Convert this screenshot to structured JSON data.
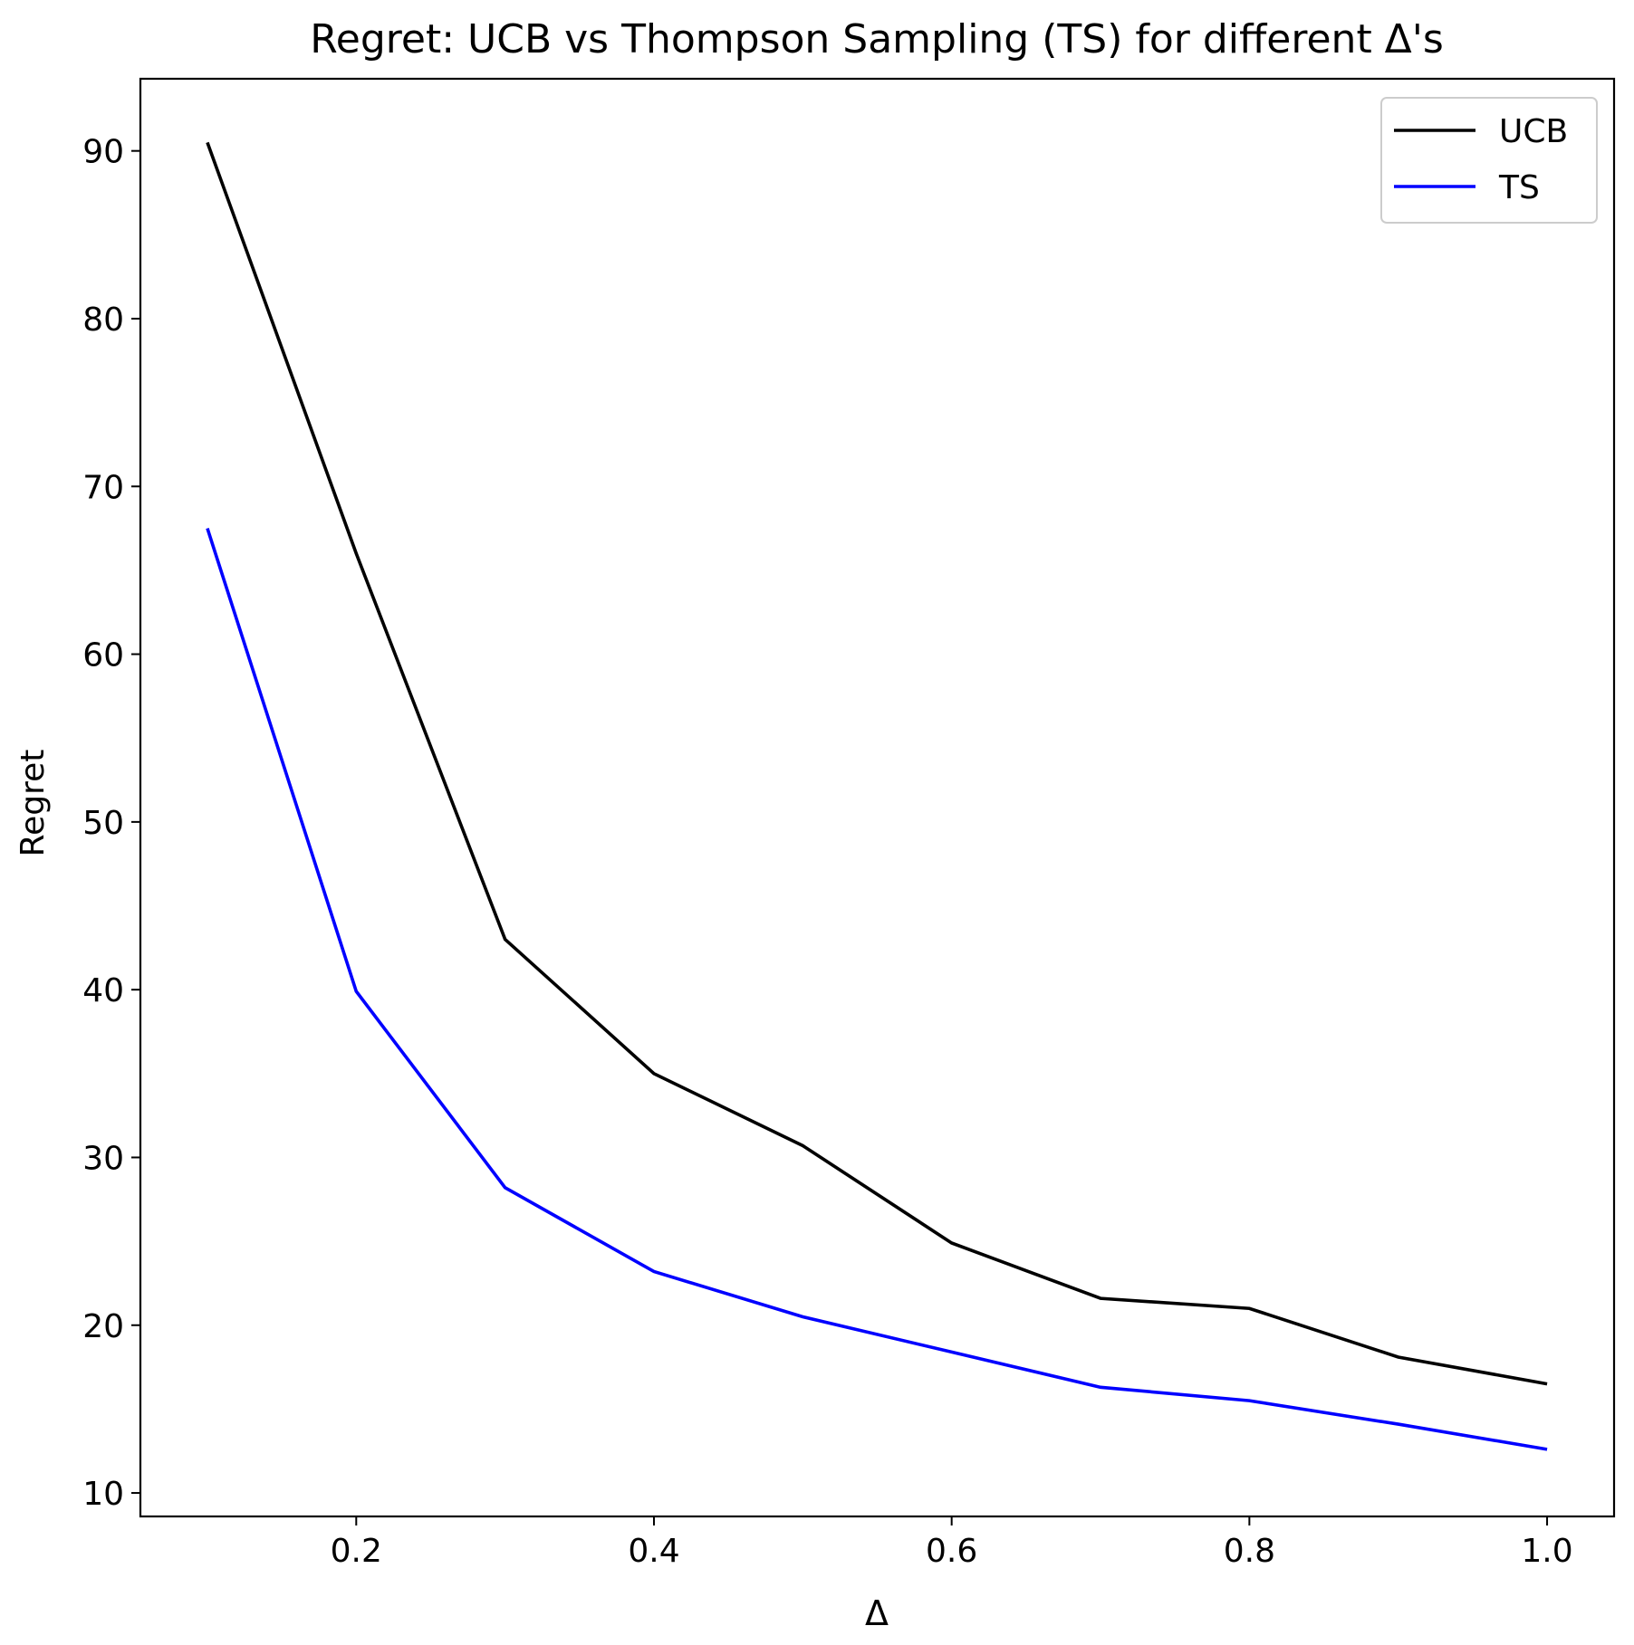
{
  "chart_data": {
    "type": "line",
    "title": "Regret: UCB vs Thompson Sampling (TS) for different Δ's",
    "xlabel": "Δ",
    "ylabel": "Regret",
    "x": [
      0.1,
      0.2,
      0.3,
      0.4,
      0.5,
      0.6,
      0.7,
      0.8,
      0.9,
      1.0
    ],
    "xlim": [
      0.055,
      1.045
    ],
    "ylim": [
      8.6,
      94.3
    ],
    "xticks": [
      0.2,
      0.4,
      0.6,
      0.8,
      1.0
    ],
    "xtick_labels": [
      "0.2",
      "0.4",
      "0.6",
      "0.8",
      "1.0"
    ],
    "yticks": [
      10,
      20,
      30,
      40,
      50,
      60,
      70,
      80,
      90
    ],
    "ytick_labels": [
      "10",
      "20",
      "30",
      "40",
      "50",
      "60",
      "70",
      "80",
      "90"
    ],
    "grid": false,
    "legend_position": "top-right",
    "series": [
      {
        "name": "UCB",
        "color": "#000000",
        "values": [
          90.5,
          66.0,
          43.0,
          35.0,
          30.7,
          24.9,
          21.6,
          21.0,
          18.1,
          16.5
        ]
      },
      {
        "name": "TS",
        "color": "#0000ff",
        "values": [
          67.5,
          39.9,
          28.2,
          23.2,
          20.5,
          18.4,
          16.3,
          15.5,
          14.1,
          12.6
        ]
      }
    ]
  }
}
